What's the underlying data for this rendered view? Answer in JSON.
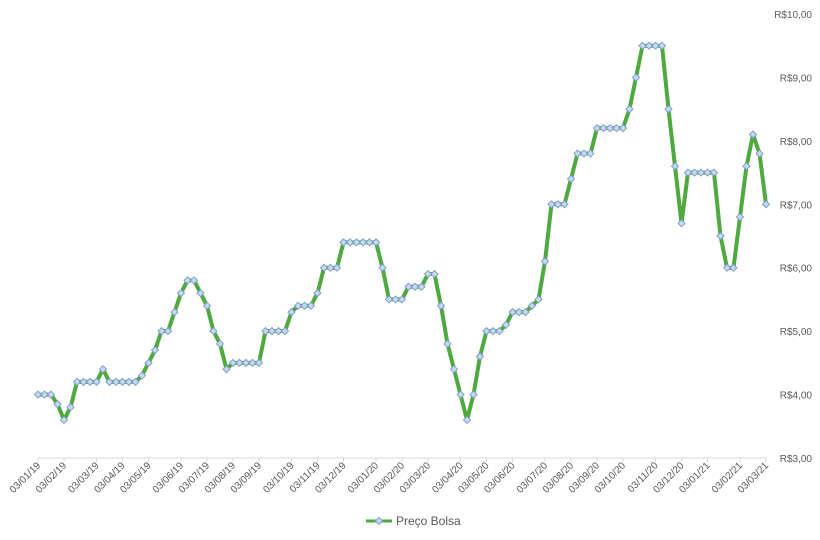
{
  "chart_data": {
    "type": "line",
    "categories": [
      "03/01/19",
      null,
      null,
      null,
      "03/02/19",
      null,
      null,
      null,
      null,
      "03/03/19",
      null,
      null,
      null,
      "03/04/19",
      null,
      null,
      null,
      "03/05/19",
      null,
      null,
      null,
      null,
      "03/06/19",
      null,
      null,
      null,
      "03/07/19",
      null,
      null,
      null,
      "03/08/19",
      null,
      null,
      null,
      "03/09/19",
      null,
      null,
      null,
      null,
      "03/10/19",
      null,
      null,
      null,
      "03/11/19",
      null,
      null,
      null,
      "03/12/19",
      null,
      null,
      null,
      null,
      "03/01/20",
      null,
      null,
      null,
      "03/02/20",
      null,
      null,
      null,
      "03/03/20",
      null,
      null,
      null,
      null,
      "03/04/20",
      null,
      null,
      null,
      "03/05/20",
      null,
      null,
      null,
      "03/06/20",
      null,
      null,
      null,
      null,
      "03/07/20",
      null,
      null,
      null,
      "03/08/20",
      null,
      null,
      null,
      "03/09/20",
      null,
      null,
      null,
      "03/10/20",
      null,
      null,
      null,
      null,
      "03/11/20",
      null,
      null,
      null,
      "03/12/20",
      null,
      null,
      null,
      "03/01/21",
      null,
      null,
      null,
      null,
      "03/02/21",
      null,
      null,
      null,
      "03/03/21"
    ],
    "series": [
      {
        "name": "Preço Bolsa",
        "color": "#4ea93e",
        "values": [
          4.0,
          4.0,
          4.0,
          3.85,
          3.6,
          3.8,
          4.2,
          4.2,
          4.2,
          4.2,
          4.4,
          4.2,
          4.2,
          4.2,
          4.2,
          4.2,
          4.3,
          4.5,
          4.7,
          5.0,
          5.0,
          5.3,
          5.6,
          5.8,
          5.8,
          5.6,
          5.4,
          5.0,
          4.8,
          4.4,
          4.5,
          4.5,
          4.5,
          4.5,
          4.5,
          5.0,
          5.0,
          5.0,
          5.0,
          5.3,
          5.4,
          5.4,
          5.4,
          5.6,
          6.0,
          6.0,
          6.0,
          6.4,
          6.4,
          6.4,
          6.4,
          6.4,
          6.4,
          6.0,
          5.5,
          5.5,
          5.5,
          5.7,
          5.7,
          5.7,
          5.9,
          5.9,
          5.4,
          4.8,
          4.4,
          4.0,
          3.6,
          4.0,
          4.6,
          5.0,
          5.0,
          5.0,
          5.1,
          5.3,
          5.3,
          5.3,
          5.4,
          5.5,
          6.1,
          7.0,
          7.0,
          7.0,
          7.4,
          7.8,
          7.8,
          7.8,
          8.2,
          8.2,
          8.2,
          8.2,
          8.2,
          8.5,
          9.0,
          9.5,
          9.5,
          9.5,
          9.5,
          8.5,
          7.6,
          6.7,
          7.5,
          7.5,
          7.5,
          7.5,
          7.5,
          6.5,
          6.0,
          6.0,
          6.8,
          7.6,
          8.1,
          7.8,
          7.0
        ]
      }
    ],
    "marker_fill": "#c6d9f0",
    "marker_stroke": "#7f9fca",
    "ylim": [
      3,
      10
    ],
    "yticks": [
      {
        "value": 3,
        "label": "R$3,00"
      },
      {
        "value": 4,
        "label": "R$4,00"
      },
      {
        "value": 5,
        "label": "R$5,00"
      },
      {
        "value": 6,
        "label": "R$6,00"
      },
      {
        "value": 7,
        "label": "R$7,00"
      },
      {
        "value": 8,
        "label": "R$8,00"
      },
      {
        "value": 9,
        "label": "R$9,00"
      },
      {
        "value": 10,
        "label": "R$10,00"
      }
    ],
    "legend": "bottom"
  }
}
